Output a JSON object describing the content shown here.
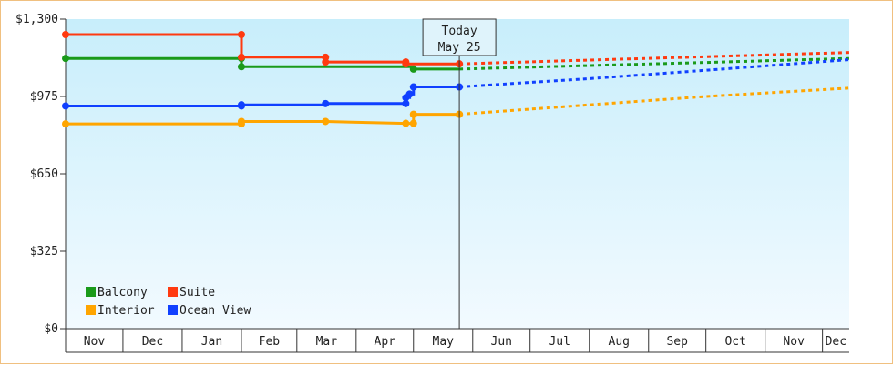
{
  "chart_data": {
    "type": "line",
    "title": "",
    "xlabel": "",
    "ylabel": "",
    "y_ticks": [
      "$0",
      "$325",
      "$650",
      "$975",
      "$1,300"
    ],
    "y_tick_values": [
      0,
      325,
      650,
      975,
      1300
    ],
    "ylim": [
      0,
      1300
    ],
    "x_tick_labels": [
      "Nov",
      "Dec",
      "Jan",
      "Feb",
      "Mar",
      "Apr",
      "May",
      "Jun",
      "Jul",
      "Aug",
      "Sep",
      "Oct",
      "Nov",
      "Dec"
    ],
    "x_tick_dates": [
      "2023-11-01",
      "2023-12-01",
      "2024-01-01",
      "2024-02-01",
      "2024-03-01",
      "2024-04-01",
      "2024-05-01",
      "2024-06-01",
      "2024-07-01",
      "2024-08-01",
      "2024-09-01",
      "2024-10-01",
      "2024-11-01",
      "2024-12-01"
    ],
    "xlim": [
      "2023-11-01",
      "2024-12-15"
    ],
    "today": {
      "line1": "Today",
      "line2": "May 25",
      "date": "2024-05-25"
    },
    "grid": false,
    "legend_position": "bottom-left",
    "colors": {
      "background_top": "#c8eefb",
      "background_bottom": "#f2faff",
      "frame": "#f0c080",
      "axis": "#333333"
    },
    "series": [
      {
        "name": "Balcony",
        "color": "#1a9a1a",
        "history": [
          {
            "x": "2023-11-01",
            "y": 1135
          },
          {
            "x": "2024-02-01",
            "y": 1135
          },
          {
            "x": "2024-02-01",
            "y": 1100
          },
          {
            "x": "2024-05-01",
            "y": 1100
          },
          {
            "x": "2024-05-01",
            "y": 1090
          },
          {
            "x": "2024-05-25",
            "y": 1090
          }
        ],
        "history_markers": [
          {
            "x": "2023-11-01",
            "y": 1135
          },
          {
            "x": "2024-02-01",
            "y": 1135
          },
          {
            "x": "2024-02-01",
            "y": 1100
          },
          {
            "x": "2024-05-01",
            "y": 1090
          }
        ],
        "forecast": [
          {
            "x": "2024-05-25",
            "y": 1090
          },
          {
            "x": "2024-08-01",
            "y": 1105
          },
          {
            "x": "2024-10-01",
            "y": 1118
          },
          {
            "x": "2024-12-15",
            "y": 1135
          }
        ]
      },
      {
        "name": "Suite",
        "color": "#ff3a10",
        "history": [
          {
            "x": "2023-11-01",
            "y": 1235
          },
          {
            "x": "2024-02-01",
            "y": 1235
          },
          {
            "x": "2024-02-01",
            "y": 1140
          },
          {
            "x": "2024-03-16",
            "y": 1140
          },
          {
            "x": "2024-03-16",
            "y": 1120
          },
          {
            "x": "2024-04-27",
            "y": 1120
          },
          {
            "x": "2024-04-27",
            "y": 1112
          },
          {
            "x": "2024-05-25",
            "y": 1112
          }
        ],
        "history_markers": [
          {
            "x": "2023-11-01",
            "y": 1235
          },
          {
            "x": "2024-02-01",
            "y": 1235
          },
          {
            "x": "2024-02-01",
            "y": 1140
          },
          {
            "x": "2024-03-16",
            "y": 1140
          },
          {
            "x": "2024-03-16",
            "y": 1120
          },
          {
            "x": "2024-04-27",
            "y": 1120
          },
          {
            "x": "2024-04-27",
            "y": 1112
          },
          {
            "x": "2024-05-25",
            "y": 1112
          }
        ],
        "forecast": [
          {
            "x": "2024-05-25",
            "y": 1112
          },
          {
            "x": "2024-08-01",
            "y": 1128
          },
          {
            "x": "2024-10-01",
            "y": 1142
          },
          {
            "x": "2024-12-15",
            "y": 1160
          }
        ]
      },
      {
        "name": "Interior",
        "color": "#ffa500",
        "history": [
          {
            "x": "2023-11-01",
            "y": 860
          },
          {
            "x": "2024-02-01",
            "y": 860
          },
          {
            "x": "2024-02-01",
            "y": 870
          },
          {
            "x": "2024-03-16",
            "y": 870
          },
          {
            "x": "2024-04-27",
            "y": 862
          },
          {
            "x": "2024-05-01",
            "y": 862
          },
          {
            "x": "2024-05-01",
            "y": 900
          },
          {
            "x": "2024-05-25",
            "y": 900
          }
        ],
        "history_markers": [
          {
            "x": "2023-11-01",
            "y": 860
          },
          {
            "x": "2024-02-01",
            "y": 860
          },
          {
            "x": "2024-02-01",
            "y": 870
          },
          {
            "x": "2024-03-16",
            "y": 870
          },
          {
            "x": "2024-04-27",
            "y": 862
          },
          {
            "x": "2024-05-01",
            "y": 862
          },
          {
            "x": "2024-05-01",
            "y": 900
          },
          {
            "x": "2024-05-25",
            "y": 900
          }
        ],
        "forecast": [
          {
            "x": "2024-05-25",
            "y": 900
          },
          {
            "x": "2024-08-01",
            "y": 940
          },
          {
            "x": "2024-10-01",
            "y": 975
          },
          {
            "x": "2024-12-15",
            "y": 1010
          }
        ]
      },
      {
        "name": "Ocean View",
        "color": "#1040ff",
        "history": [
          {
            "x": "2023-11-01",
            "y": 935
          },
          {
            "x": "2024-02-01",
            "y": 935
          },
          {
            "x": "2024-02-01",
            "y": 940
          },
          {
            "x": "2024-03-16",
            "y": 940
          },
          {
            "x": "2024-03-16",
            "y": 945
          },
          {
            "x": "2024-04-27",
            "y": 945
          },
          {
            "x": "2024-04-27",
            "y": 970
          },
          {
            "x": "2024-04-29",
            "y": 970
          },
          {
            "x": "2024-04-29",
            "y": 985
          },
          {
            "x": "2024-05-01",
            "y": 985
          },
          {
            "x": "2024-05-01",
            "y": 1015
          },
          {
            "x": "2024-05-25",
            "y": 1015
          }
        ],
        "history_markers": [
          {
            "x": "2023-11-01",
            "y": 935
          },
          {
            "x": "2024-02-01",
            "y": 935
          },
          {
            "x": "2024-02-01",
            "y": 940
          },
          {
            "x": "2024-03-16",
            "y": 945
          },
          {
            "x": "2024-04-27",
            "y": 945
          },
          {
            "x": "2024-04-27",
            "y": 970
          },
          {
            "x": "2024-04-29",
            "y": 985
          },
          {
            "x": "2024-05-01",
            "y": 1015
          },
          {
            "x": "2024-05-25",
            "y": 1015
          }
        ],
        "forecast": [
          {
            "x": "2024-05-25",
            "y": 1015
          },
          {
            "x": "2024-08-01",
            "y": 1050
          },
          {
            "x": "2024-10-01",
            "y": 1085
          },
          {
            "x": "2024-12-15",
            "y": 1130
          }
        ]
      }
    ]
  }
}
